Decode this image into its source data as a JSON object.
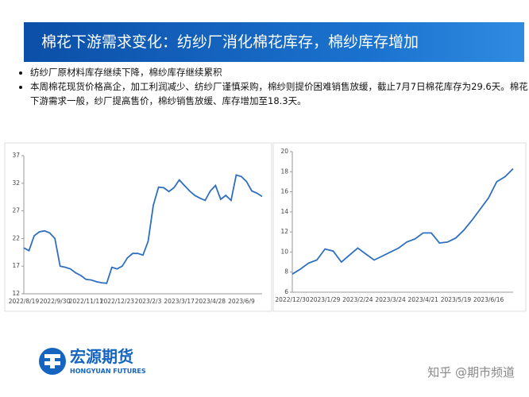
{
  "header": {
    "title": "棉花下游需求变化：纺纱厂消化棉花库存，棉纱库存增加"
  },
  "bullets": [
    "纺纱厂原材料库存继续下降，棉纱库存继续累积",
    "本周棉花现货价格高企，加工利润减少、纺纱厂谨慎采购，棉纱则提价困难销售放缓，截止7月7日棉花库存为29.6天。棉花下游需求一般，纱厂提高售价，棉纱销售放缓、库存增加至18.3天。"
  ],
  "logo": {
    "name": "宏源期货",
    "english": "HONGYUAN FUTURES"
  },
  "watermark": "知乎 @期市频道",
  "chart_data": [
    {
      "type": "line",
      "color": "#2f6fc0",
      "categories": [
        "2022/8/19",
        null,
        null,
        null,
        null,
        null,
        "2022/9/30",
        null,
        null,
        null,
        null,
        null,
        "2022/11/11",
        null,
        null,
        null,
        null,
        null,
        "2022/12/23",
        null,
        null,
        null,
        null,
        null,
        "2023/2/3",
        null,
        null,
        null,
        null,
        null,
        "2023/3/17",
        null,
        null,
        null,
        null,
        null,
        "2023/4/28",
        null,
        null,
        null,
        null,
        null,
        "2023/6/9",
        null,
        null,
        null,
        null
      ],
      "values": [
        20.3,
        19.8,
        22.5,
        23.2,
        23.4,
        23.0,
        22.0,
        17.0,
        16.8,
        16.5,
        15.8,
        15.3,
        14.6,
        14.5,
        14.2,
        14.0,
        13.9,
        16.8,
        16.5,
        17.0,
        18.5,
        19.3,
        19.3,
        19.0,
        21.5,
        28.0,
        31.3,
        31.2,
        30.5,
        31.2,
        32.6,
        31.6,
        30.6,
        29.8,
        29.3,
        28.9,
        30.6,
        31.6,
        29.1,
        29.8,
        28.9,
        33.5,
        33.2,
        32.3,
        30.6,
        30.2,
        29.6
      ],
      "ylim": [
        12,
        37
      ],
      "yticks": [
        12,
        17,
        22,
        27,
        32,
        37
      ]
    },
    {
      "type": "line",
      "color": "#2f6fc0",
      "categories": [
        "2022/12/30",
        null,
        null,
        null,
        "2023/1/29",
        null,
        null,
        null,
        "2023/2/24",
        null,
        null,
        null,
        "2023/3/24",
        null,
        null,
        null,
        "2023/4/21",
        null,
        null,
        null,
        "2023/5/19",
        null,
        null,
        null,
        "2023/6/16",
        null,
        null,
        null
      ],
      "values": [
        7.8,
        8.3,
        8.9,
        9.2,
        10.3,
        10.1,
        9.0,
        9.7,
        10.4,
        9.8,
        9.2,
        9.6,
        10.0,
        10.4,
        11.0,
        11.3,
        11.9,
        11.9,
        10.9,
        11.0,
        11.4,
        12.2,
        13.2,
        14.3,
        15.4,
        17.0,
        17.5,
        18.3
      ],
      "ylim": [
        6,
        20
      ],
      "yticks": [
        6,
        8,
        10,
        12,
        14,
        16,
        18,
        20
      ]
    }
  ]
}
